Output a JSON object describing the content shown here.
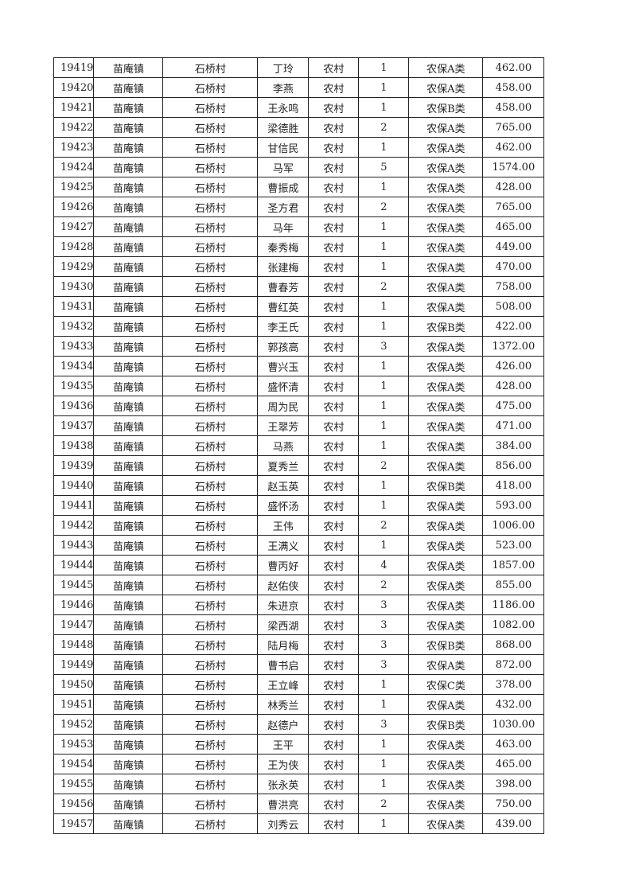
{
  "table": {
    "rows": [
      [
        "19419",
        "苗庵镇",
        "石桥村",
        "丁玲",
        "农村",
        "1",
        "农保A类",
        "462.00"
      ],
      [
        "19420",
        "苗庵镇",
        "石桥村",
        "李燕",
        "农村",
        "1",
        "农保A类",
        "458.00"
      ],
      [
        "19421",
        "苗庵镇",
        "石桥村",
        "王永鸣",
        "农村",
        "1",
        "农保B类",
        "458.00"
      ],
      [
        "19422",
        "苗庵镇",
        "石桥村",
        "梁德胜",
        "农村",
        "2",
        "农保A类",
        "765.00"
      ],
      [
        "19423",
        "苗庵镇",
        "石桥村",
        "甘信民",
        "农村",
        "1",
        "农保A类",
        "462.00"
      ],
      [
        "19424",
        "苗庵镇",
        "石桥村",
        "马军",
        "农村",
        "5",
        "农保A类",
        "1574.00"
      ],
      [
        "19425",
        "苗庵镇",
        "石桥村",
        "曹振成",
        "农村",
        "1",
        "农保A类",
        "428.00"
      ],
      [
        "19426",
        "苗庵镇",
        "石桥村",
        "圣方君",
        "农村",
        "2",
        "农保A类",
        "765.00"
      ],
      [
        "19427",
        "苗庵镇",
        "石桥村",
        "马年",
        "农村",
        "1",
        "农保A类",
        "465.00"
      ],
      [
        "19428",
        "苗庵镇",
        "石桥村",
        "秦秀梅",
        "农村",
        "1",
        "农保A类",
        "449.00"
      ],
      [
        "19429",
        "苗庵镇",
        "石桥村",
        "张建梅",
        "农村",
        "1",
        "农保A类",
        "470.00"
      ],
      [
        "19430",
        "苗庵镇",
        "石桥村",
        "曹春芳",
        "农村",
        "2",
        "农保A类",
        "758.00"
      ],
      [
        "19431",
        "苗庵镇",
        "石桥村",
        "曹红英",
        "农村",
        "1",
        "农保A类",
        "508.00"
      ],
      [
        "19432",
        "苗庵镇",
        "石桥村",
        "李王氏",
        "农村",
        "1",
        "农保B类",
        "422.00"
      ],
      [
        "19433",
        "苗庵镇",
        "石桥村",
        "郭孩高",
        "农村",
        "3",
        "农保A类",
        "1372.00"
      ],
      [
        "19434",
        "苗庵镇",
        "石桥村",
        "曹兴玉",
        "农村",
        "1",
        "农保A类",
        "426.00"
      ],
      [
        "19435",
        "苗庵镇",
        "石桥村",
        "盛怀清",
        "农村",
        "1",
        "农保A类",
        "428.00"
      ],
      [
        "19436",
        "苗庵镇",
        "石桥村",
        "周为民",
        "农村",
        "1",
        "农保A类",
        "475.00"
      ],
      [
        "19437",
        "苗庵镇",
        "石桥村",
        "王翠芳",
        "农村",
        "1",
        "农保A类",
        "471.00"
      ],
      [
        "19438",
        "苗庵镇",
        "石桥村",
        "马燕",
        "农村",
        "1",
        "农保A类",
        "384.00"
      ],
      [
        "19439",
        "苗庵镇",
        "石桥村",
        "夏秀兰",
        "农村",
        "2",
        "农保A类",
        "856.00"
      ],
      [
        "19440",
        "苗庵镇",
        "石桥村",
        "赵玉英",
        "农村",
        "1",
        "农保B类",
        "418.00"
      ],
      [
        "19441",
        "苗庵镇",
        "石桥村",
        "盛怀汤",
        "农村",
        "1",
        "农保A类",
        "593.00"
      ],
      [
        "19442",
        "苗庵镇",
        "石桥村",
        "王伟",
        "农村",
        "2",
        "农保A类",
        "1006.00"
      ],
      [
        "19443",
        "苗庵镇",
        "石桥村",
        "王满义",
        "农村",
        "1",
        "农保A类",
        "523.00"
      ],
      [
        "19444",
        "苗庵镇",
        "石桥村",
        "曹丙好",
        "农村",
        "4",
        "农保A类",
        "1857.00"
      ],
      [
        "19445",
        "苗庵镇",
        "石桥村",
        "赵佑侠",
        "农村",
        "2",
        "农保A类",
        "855.00"
      ],
      [
        "19446",
        "苗庵镇",
        "石桥村",
        "朱进京",
        "农村",
        "3",
        "农保A类",
        "1186.00"
      ],
      [
        "19447",
        "苗庵镇",
        "石桥村",
        "梁西湖",
        "农村",
        "3",
        "农保A类",
        "1082.00"
      ],
      [
        "19448",
        "苗庵镇",
        "石桥村",
        "陆月梅",
        "农村",
        "3",
        "农保B类",
        "868.00"
      ],
      [
        "19449",
        "苗庵镇",
        "石桥村",
        "曹书启",
        "农村",
        "3",
        "农保A类",
        "872.00"
      ],
      [
        "19450",
        "苗庵镇",
        "石桥村",
        "王立峰",
        "农村",
        "1",
        "农保C类",
        "378.00"
      ],
      [
        "19451",
        "苗庵镇",
        "石桥村",
        "林秀兰",
        "农村",
        "1",
        "农保A类",
        "432.00"
      ],
      [
        "19452",
        "苗庵镇",
        "石桥村",
        "赵德户",
        "农村",
        "3",
        "农保B类",
        "1030.00"
      ],
      [
        "19453",
        "苗庵镇",
        "石桥村",
        "王平",
        "农村",
        "1",
        "农保A类",
        "463.00"
      ],
      [
        "19454",
        "苗庵镇",
        "石桥村",
        "王为侠",
        "农村",
        "1",
        "农保A类",
        "465.00"
      ],
      [
        "19455",
        "苗庵镇",
        "石桥村",
        "张永英",
        "农村",
        "1",
        "农保A类",
        "398.00"
      ],
      [
        "19456",
        "苗庵镇",
        "石桥村",
        "曹洪亮",
        "农村",
        "2",
        "农保A类",
        "750.00"
      ],
      [
        "19457",
        "苗庵镇",
        "石桥村",
        "刘秀云",
        "农村",
        "1",
        "农保A类",
        "439.00"
      ]
    ]
  }
}
